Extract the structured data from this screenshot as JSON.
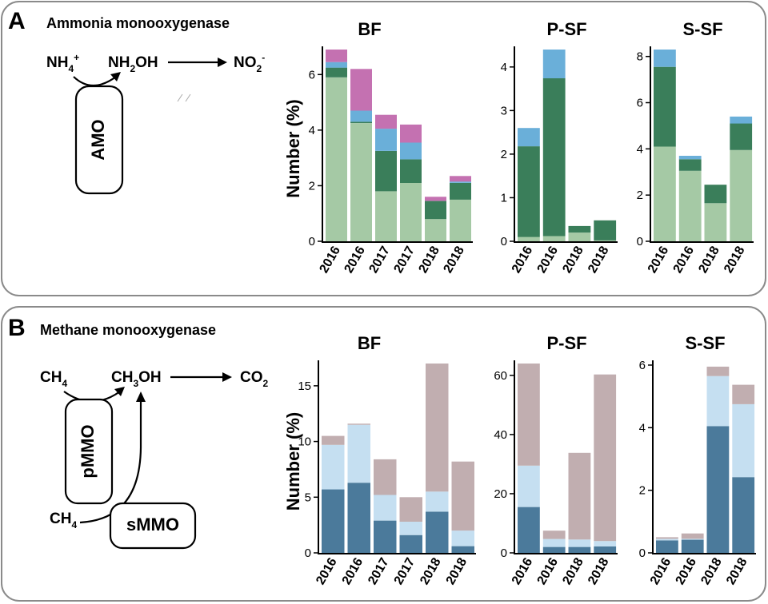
{
  "panels": [
    {
      "letter": "A",
      "title": "Ammonia monooxygenase",
      "enzyme": "AMO",
      "reaction": {
        "substrate": "NH",
        "substrate_sub": "4",
        "substrate_sup": "+",
        "product1": "NH",
        "product1_sub": "2",
        "product1_tail": "OH",
        "product2": "NO",
        "product2_sub": "2",
        "product2_sup": "-"
      }
    },
    {
      "letter": "B",
      "title": "Methane monooxygenase",
      "enzyme1": "pMMO",
      "enzyme2": "sMMO",
      "reaction": {
        "substrate": "CH",
        "substrate_sub": "4",
        "product1": "CH",
        "product1_sub": "3",
        "product1_tail": "OH",
        "product2": "CO",
        "product2_sub": "2",
        "substrate2": "CH",
        "substrate2_sub": "4"
      }
    }
  ],
  "chart_data": [
    {
      "panel": "A",
      "title": "BF",
      "type": "bar",
      "stacked": true,
      "ylabel": "Number  (%)",
      "ylim": [
        0,
        6.9
      ],
      "yticks": [
        0,
        2,
        4,
        6
      ],
      "categories": [
        "2016",
        "2016",
        "2017",
        "2017",
        "2018",
        "2018"
      ],
      "series": [
        {
          "color": "#a5c9a5",
          "values": [
            5.9,
            4.25,
            1.8,
            2.1,
            0.8,
            1.5
          ]
        },
        {
          "color": "#3a7e5a",
          "values": [
            0.35,
            0.05,
            1.45,
            0.85,
            0.65,
            0.6
          ]
        },
        {
          "color": "#6aafd9",
          "values": [
            0.2,
            0.4,
            0.8,
            0.6,
            0.0,
            0.05
          ]
        },
        {
          "color": "#c471b1",
          "values": [
            0.45,
            1.5,
            0.5,
            0.65,
            0.15,
            0.2
          ]
        }
      ]
    },
    {
      "panel": "A",
      "title": "P-SF",
      "type": "bar",
      "stacked": true,
      "ylim": [
        0,
        4.4
      ],
      "yticks": [
        0,
        1,
        2,
        3,
        4
      ],
      "categories": [
        "2016",
        "2016",
        "2018",
        "2018"
      ],
      "series": [
        {
          "color": "#a5c9a5",
          "values": [
            0.1,
            0.12,
            0.2,
            0.02
          ]
        },
        {
          "color": "#3a7e5a",
          "values": [
            2.08,
            3.62,
            0.15,
            0.46
          ]
        },
        {
          "color": "#6aafd9",
          "values": [
            0.42,
            0.66,
            0.0,
            0.0
          ]
        }
      ]
    },
    {
      "panel": "A",
      "title": "S-SF",
      "type": "bar",
      "stacked": true,
      "ylim": [
        0,
        8.3
      ],
      "yticks": [
        0,
        2,
        4,
        6,
        8
      ],
      "categories": [
        "2016",
        "2016",
        "2018",
        "2018"
      ],
      "series": [
        {
          "color": "#a5c9a5",
          "values": [
            4.1,
            3.05,
            1.65,
            3.95
          ]
        },
        {
          "color": "#3a7e5a",
          "values": [
            3.45,
            0.5,
            0.8,
            1.15
          ]
        },
        {
          "color": "#6aafd9",
          "values": [
            0.75,
            0.15,
            0.0,
            0.3
          ]
        }
      ]
    },
    {
      "panel": "B",
      "title": "BF",
      "type": "bar",
      "stacked": true,
      "ylabel": "Number  (%)",
      "ylim": [
        0,
        17
      ],
      "yticks": [
        0,
        5,
        10,
        15
      ],
      "categories": [
        "2016",
        "2016",
        "2017",
        "2017",
        "2018",
        "2018"
      ],
      "series": [
        {
          "color": "#4b7a9b",
          "values": [
            5.7,
            6.3,
            2.9,
            1.6,
            3.7,
            0.6
          ]
        },
        {
          "color": "#c5dff1",
          "values": [
            4.0,
            5.2,
            2.3,
            1.2,
            1.8,
            1.4
          ]
        },
        {
          "color": "#c1aeb0",
          "values": [
            0.8,
            0.1,
            3.2,
            2.2,
            11.5,
            6.2
          ]
        }
      ]
    },
    {
      "panel": "B",
      "title": "P-SF",
      "type": "bar",
      "stacked": true,
      "ylim": [
        0,
        64
      ],
      "yticks": [
        0,
        20,
        40,
        60
      ],
      "categories": [
        "2016",
        "2016",
        "2018",
        "2018"
      ],
      "series": [
        {
          "color": "#4b7a9b",
          "values": [
            15.5,
            2.0,
            2.0,
            2.2
          ]
        },
        {
          "color": "#c5dff1",
          "values": [
            14.0,
            2.7,
            2.5,
            1.8
          ]
        },
        {
          "color": "#c1aeb0",
          "values": [
            34.5,
            2.8,
            29.3,
            56.3
          ]
        }
      ]
    },
    {
      "panel": "B",
      "title": "S-SF",
      "type": "bar",
      "stacked": true,
      "ylim": [
        0,
        6.05
      ],
      "yticks": [
        0,
        2,
        4,
        6
      ],
      "categories": [
        "2016",
        "2016",
        "2018",
        "2018"
      ],
      "series": [
        {
          "color": "#4b7a9b",
          "values": [
            0.4,
            0.42,
            4.05,
            2.42
          ]
        },
        {
          "color": "#c5dff1",
          "values": [
            0.05,
            0.03,
            1.6,
            2.33
          ]
        },
        {
          "color": "#c1aeb0",
          "values": [
            0.05,
            0.17,
            0.3,
            0.62
          ]
        }
      ]
    }
  ]
}
